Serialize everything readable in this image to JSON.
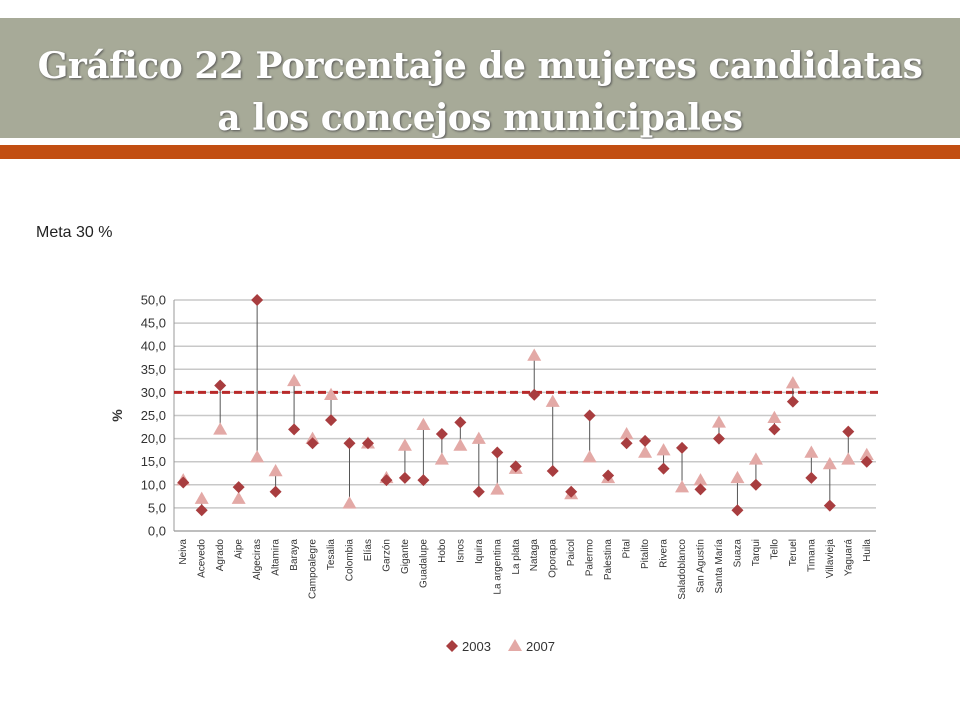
{
  "slide": {
    "title": "Gráfico 22 Porcentaje de mujeres candidatas a los concejos municipales",
    "note": "Meta 30 %"
  },
  "colors": {
    "title_band": "#a7aa98",
    "accent_rule": "#c24e12",
    "series_2003": "#a83d3f",
    "series_2007": "#e3a9a6",
    "target_line": "#b82a2a",
    "grid": "#c8c8c8"
  },
  "chart_data": {
    "type": "scatter",
    "title": "",
    "xlabel": "",
    "ylabel": "%",
    "ylim": [
      0,
      50
    ],
    "yticks": [
      "0,0",
      "5,0",
      "10,0",
      "15,0",
      "20,0",
      "25,0",
      "30,0",
      "35,0",
      "40,0",
      "45,0",
      "50,0"
    ],
    "grid": true,
    "legend_position": "bottom",
    "target_line": 30,
    "categories": [
      "Neiva",
      "Acevedo",
      "Agrado",
      "Aipe",
      "Algeciras",
      "Altamira",
      "Baraya",
      "Campoalegre",
      "Tesalia",
      "Colombia",
      "Elías",
      "Garzón",
      "Gigante",
      "Guadalupe",
      "Hobo",
      "Isnos",
      "Iquira",
      "La argentina",
      "La plata",
      "Nataga",
      "Oporapa",
      "Paicol",
      "Palermo",
      "Palestina",
      "Pital",
      "Pitalito",
      "Rivera",
      "Saladoblanco",
      "San Agustín",
      "Santa María",
      "Suaza",
      "Tarqui",
      "Tello",
      "Teruel",
      "Timana",
      "Villavieja",
      "Yaguará",
      "Huila"
    ],
    "series": [
      {
        "name": "2003",
        "marker": "diamond",
        "values": [
          10.5,
          4.5,
          31.5,
          9.5,
          50.0,
          8.5,
          22.0,
          19.0,
          24.0,
          19.0,
          19.0,
          11.0,
          11.5,
          11.0,
          21.0,
          23.5,
          8.5,
          17.0,
          14.0,
          29.5,
          13.0,
          8.5,
          25.0,
          12.0,
          19.0,
          19.5,
          13.5,
          18.0,
          9.0,
          20.0,
          4.5,
          10.0,
          22.0,
          28.0,
          11.5,
          5.5,
          21.5,
          15.0
        ]
      },
      {
        "name": "2007",
        "marker": "triangle",
        "values": [
          11.0,
          7.0,
          22.0,
          7.0,
          16.0,
          13.0,
          32.5,
          20.0,
          29.5,
          6.0,
          19.0,
          11.5,
          18.5,
          23.0,
          15.5,
          18.5,
          20.0,
          9.0,
          13.5,
          38.0,
          28.0,
          8.0,
          16.0,
          11.5,
          21.0,
          17.0,
          17.5,
          9.5,
          11.0,
          23.5,
          11.5,
          15.5,
          24.5,
          32.0,
          17.0,
          14.5,
          15.5,
          16.5
        ]
      }
    ]
  }
}
